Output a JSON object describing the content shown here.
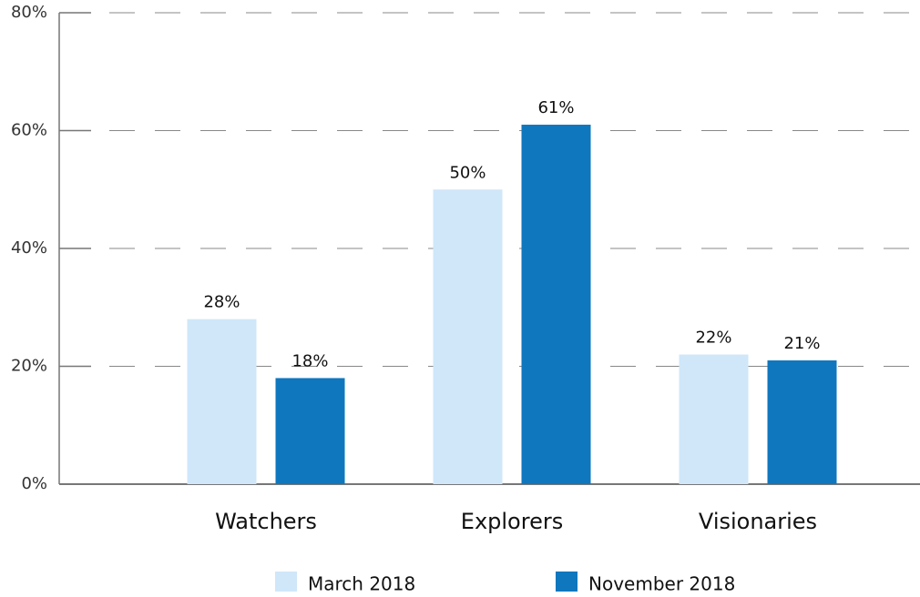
{
  "chart_data": {
    "type": "bar",
    "categories": [
      "Watchers",
      "Explorers",
      "Visionaries"
    ],
    "series": [
      {
        "name": "March 2018",
        "color": "#d0e7f9",
        "values": [
          28,
          50,
          22
        ],
        "value_labels": [
          "28%",
          "50%",
          "22%"
        ]
      },
      {
        "name": "November 2018",
        "color": "#0f77be",
        "values": [
          18,
          61,
          21
        ],
        "value_labels": [
          "18%",
          "61%",
          "21%"
        ]
      }
    ],
    "ylim": [
      0,
      80
    ],
    "yticks": [
      {
        "value": 0,
        "label": "0%"
      },
      {
        "value": 20,
        "label": "20%"
      },
      {
        "value": 40,
        "label": "40%"
      },
      {
        "value": 60,
        "label": "60%"
      },
      {
        "value": 80,
        "label": "80%"
      }
    ],
    "grid": true,
    "legend": "bottom"
  }
}
